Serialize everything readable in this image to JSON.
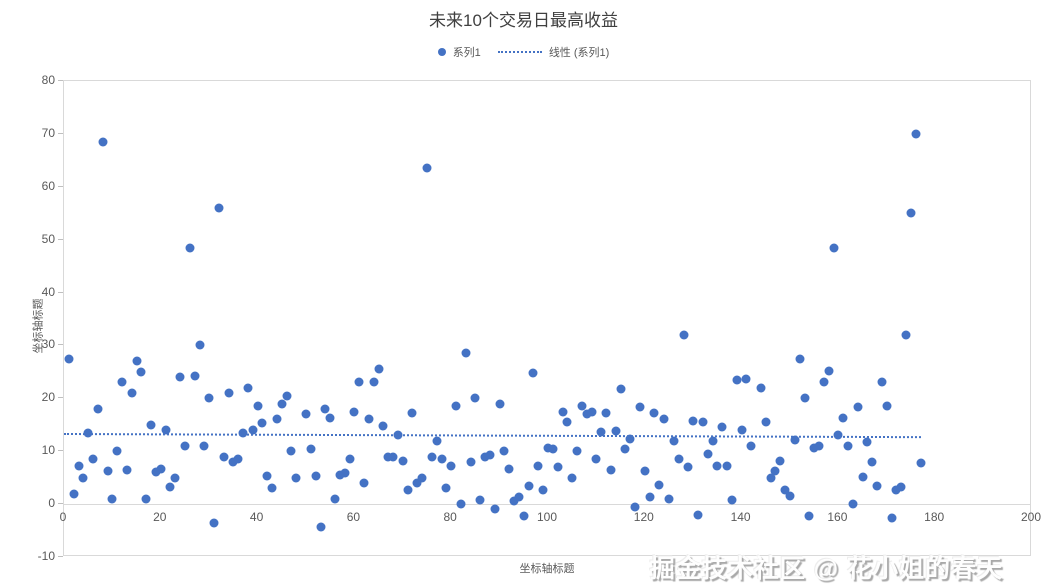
{
  "chart": {
    "title": "未来10个交易日最高收益",
    "legend": {
      "series_label": "系列1",
      "trend_label": "线性 (系列1)"
    },
    "x_axis_title": "坐标轴标题",
    "y_axis_title": "坐标轴标题",
    "watermark": "掘金技术社区 @ 花小姐的春天",
    "colors": {
      "point": "#4472C4",
      "trend": "#4472C4",
      "axis_text": "#595959",
      "title_text": "#404040",
      "axis_line": "#D9D9D9"
    }
  },
  "chart_data": {
    "type": "scatter",
    "title": "未来10个交易日最高收益",
    "xlabel": "坐标轴标题",
    "ylabel": "坐标轴标题",
    "xlim": [
      0,
      200
    ],
    "ylim": [
      -10,
      80
    ],
    "x_ticks": [
      0,
      20,
      40,
      60,
      80,
      100,
      120,
      140,
      160,
      180,
      200
    ],
    "y_ticks": [
      -10,
      0,
      10,
      20,
      30,
      40,
      50,
      60,
      70,
      80
    ],
    "grid": false,
    "legend_position": "top",
    "series": [
      {
        "name": "系列1",
        "points": [
          [
            1,
            27.5
          ],
          [
            2,
            2
          ],
          [
            3,
            7.3
          ],
          [
            4,
            5
          ],
          [
            5,
            13.5
          ],
          [
            6,
            8.5
          ],
          [
            7,
            18
          ],
          [
            8,
            68.5
          ],
          [
            9,
            6.3
          ],
          [
            10,
            1
          ],
          [
            11,
            10
          ],
          [
            12,
            23
          ],
          [
            13,
            6.5
          ],
          [
            14,
            21
          ],
          [
            15,
            27
          ],
          [
            16,
            25
          ],
          [
            17,
            1
          ],
          [
            18,
            15
          ],
          [
            19,
            6
          ],
          [
            20,
            6.6
          ],
          [
            21,
            14
          ],
          [
            22,
            3.3
          ],
          [
            23,
            5
          ],
          [
            24,
            24
          ],
          [
            25,
            11
          ],
          [
            26,
            48.5
          ],
          [
            27,
            24.3
          ],
          [
            28,
            30
          ],
          [
            29,
            11
          ],
          [
            30,
            20
          ],
          [
            31,
            -3.5
          ],
          [
            32,
            56
          ],
          [
            33,
            9
          ],
          [
            34,
            21
          ],
          [
            35,
            8
          ],
          [
            36,
            8.6
          ],
          [
            37,
            13.4
          ],
          [
            38,
            22
          ],
          [
            39,
            14
          ],
          [
            40,
            18.5
          ],
          [
            41,
            15.3
          ],
          [
            42,
            5.4
          ],
          [
            43,
            3
          ],
          [
            44,
            16
          ],
          [
            45,
            19
          ],
          [
            46,
            20.5
          ],
          [
            47,
            10
          ],
          [
            48,
            5
          ],
          [
            50,
            17
          ],
          [
            51,
            10.4
          ],
          [
            52,
            5.3
          ],
          [
            53,
            -4.3
          ],
          [
            54,
            18
          ],
          [
            55,
            16.3
          ],
          [
            56,
            1
          ],
          [
            57,
            5.5
          ],
          [
            58,
            5.8
          ],
          [
            59,
            8.5
          ],
          [
            60,
            17.4
          ],
          [
            61,
            23
          ],
          [
            62,
            4
          ],
          [
            63,
            16
          ],
          [
            64,
            23
          ],
          [
            65,
            25.5
          ],
          [
            66,
            14.7
          ],
          [
            67,
            9
          ],
          [
            68,
            9
          ],
          [
            69,
            13
          ],
          [
            70,
            8.2
          ],
          [
            71,
            2.7
          ],
          [
            72,
            17.2
          ],
          [
            73,
            4
          ],
          [
            74,
            5
          ],
          [
            75,
            63.5
          ],
          [
            76,
            9
          ],
          [
            77,
            12
          ],
          [
            78,
            8.6
          ],
          [
            79,
            3
          ],
          [
            80,
            7.3
          ],
          [
            81,
            18.5
          ],
          [
            82,
            0
          ],
          [
            83,
            28.6
          ],
          [
            84,
            8
          ],
          [
            85,
            20
          ],
          [
            86,
            0.7
          ],
          [
            87,
            9
          ],
          [
            88,
            9.3
          ],
          [
            89,
            -0.9
          ],
          [
            90,
            19
          ],
          [
            91,
            10
          ],
          [
            92,
            6.6
          ],
          [
            93,
            0.5
          ],
          [
            94,
            1.3
          ],
          [
            95,
            -2.2
          ],
          [
            96,
            3.5
          ],
          [
            97,
            24.7
          ],
          [
            98,
            7.3
          ],
          [
            99,
            2.7
          ],
          [
            100,
            10.7
          ],
          [
            101,
            10.4
          ],
          [
            102,
            7
          ],
          [
            103,
            17.4
          ],
          [
            104,
            15.6
          ],
          [
            105,
            5
          ],
          [
            106,
            10
          ],
          [
            107,
            18.5
          ],
          [
            108,
            17
          ],
          [
            109,
            17.5
          ],
          [
            110,
            8.5
          ],
          [
            111,
            13.6
          ],
          [
            112,
            17.3
          ],
          [
            113,
            6.4
          ],
          [
            114,
            13.8
          ],
          [
            115,
            21.7
          ],
          [
            116,
            10.4
          ],
          [
            117,
            12.4
          ],
          [
            118,
            -0.5
          ],
          [
            119,
            18.4
          ],
          [
            120,
            6.3
          ],
          [
            121,
            1.3
          ],
          [
            122,
            17.3
          ],
          [
            123,
            3.7
          ],
          [
            124,
            16
          ],
          [
            125,
            1
          ],
          [
            126,
            12
          ],
          [
            127,
            8.6
          ],
          [
            128,
            32
          ],
          [
            129,
            7
          ],
          [
            130,
            15.8
          ],
          [
            131,
            -2
          ],
          [
            132,
            15.5
          ],
          [
            133,
            9.4
          ],
          [
            134,
            12
          ],
          [
            135,
            7.3
          ],
          [
            136,
            14.5
          ],
          [
            137,
            7.2
          ],
          [
            138,
            0.8
          ],
          [
            139,
            23.5
          ],
          [
            140,
            14
          ],
          [
            141,
            23.7
          ],
          [
            142,
            11
          ],
          [
            144,
            22
          ],
          [
            145,
            15.6
          ],
          [
            146,
            5
          ],
          [
            147,
            6.3
          ],
          [
            148,
            8.2
          ],
          [
            149,
            2.7
          ],
          [
            150,
            1.5
          ],
          [
            151,
            12.2
          ],
          [
            152,
            27.5
          ],
          [
            153,
            20
          ],
          [
            154,
            -2.2
          ],
          [
            155,
            10.7
          ],
          [
            156,
            11
          ],
          [
            157,
            23
          ],
          [
            158,
            25.2
          ],
          [
            159,
            48.5
          ],
          [
            160,
            13
          ],
          [
            161,
            16.3
          ],
          [
            162,
            11
          ],
          [
            163,
            0
          ],
          [
            164,
            18.4
          ],
          [
            165,
            5.2
          ],
          [
            166,
            11.7
          ],
          [
            167,
            8
          ],
          [
            168,
            3.4
          ],
          [
            169,
            23
          ],
          [
            170,
            18.5
          ],
          [
            171,
            -2.7
          ],
          [
            172,
            2.7
          ],
          [
            173,
            3.3
          ],
          [
            174,
            32
          ],
          [
            175,
            55
          ],
          [
            176,
            70
          ],
          [
            177,
            7.7
          ]
        ]
      }
    ],
    "trendline": {
      "name": "线性 (系列1)",
      "style": "dotted",
      "x1": 0,
      "y1": 13.5,
      "x2": 177,
      "y2": 12.9
    }
  }
}
